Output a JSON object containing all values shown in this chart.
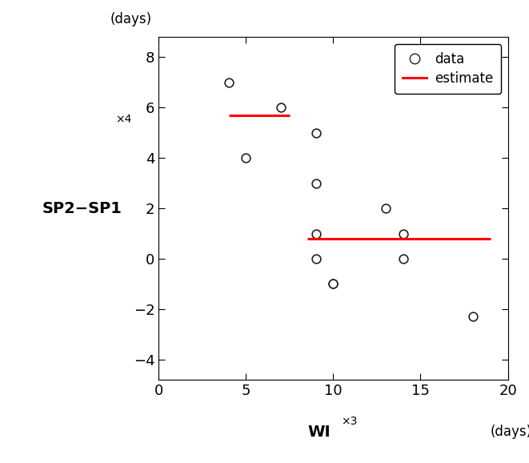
{
  "scatter_x": [
    4,
    5,
    7,
    9,
    9,
    9,
    9,
    10,
    10,
    13,
    14,
    14,
    18
  ],
  "scatter_y": [
    7,
    4,
    6,
    5,
    3,
    1,
    0,
    -1,
    -1,
    2,
    1,
    0,
    -2.3
  ],
  "line1_x": [
    4,
    7.5
  ],
  "line1_y": [
    5.7,
    5.7
  ],
  "line2_x": [
    8.5,
    19
  ],
  "line2_y": [
    0.8,
    0.8
  ],
  "xlim": [
    0,
    20
  ],
  "ylim": [
    -4.8,
    8.8
  ],
  "xticks": [
    0,
    5,
    10,
    15,
    20
  ],
  "yticks": [
    -4,
    -2,
    0,
    2,
    4,
    6,
    8
  ],
  "xlabel": "WI",
  "xlabel_note": "×3",
  "xlabel_units": "(days)",
  "ylabel_main": "SP2−SP1",
  "ylabel_note": "×4",
  "ylabel_units": "(days)",
  "marker_facecolor": "white",
  "marker_edgecolor": "#222222",
  "line_color": "#ff0000",
  "background_color": "#ffffff",
  "legend_data_label": "data",
  "legend_estimate_label": "estimate",
  "tick_labelsize": 13,
  "axis_label_fontsize": 14,
  "note_fontsize": 10,
  "units_fontsize": 12
}
